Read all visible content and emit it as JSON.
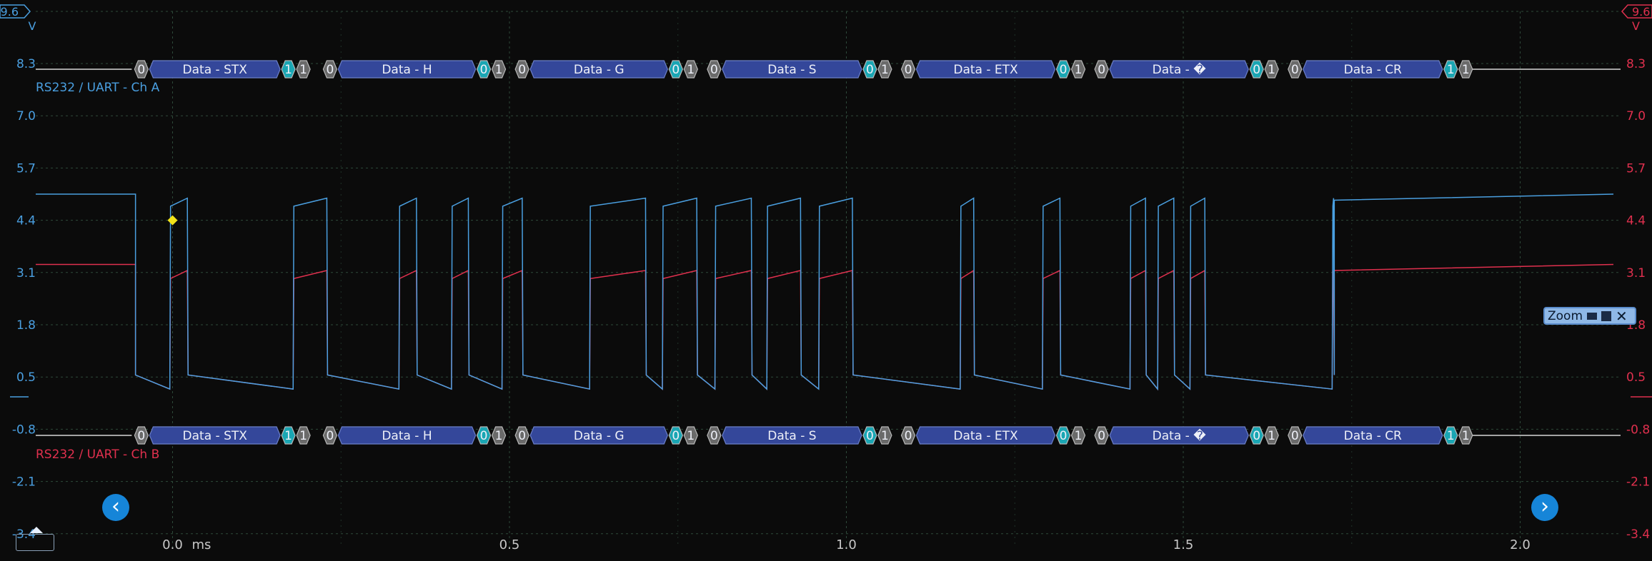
{
  "colors": {
    "background": "#0b0b0b",
    "grid": "#2e4a3a",
    "channel_a": "#4a9fe0",
    "channel_b": "#e0304e",
    "bus_fill": "#34479a",
    "bus_border": "#6b7fc8",
    "bit_zero": "#6a6a6a",
    "bit_one": "#1aa6b3",
    "marker": "#f2e31a",
    "nav_button": "#1685d8"
  },
  "left_axis": {
    "unit": "V",
    "top_value": "9.6",
    "ticks": [
      "8.3",
      "7.0",
      "5.7",
      "4.4",
      "3.1",
      "1.8",
      "0.5",
      "-0.8",
      "-2.1",
      "-3.4"
    ]
  },
  "right_axis": {
    "unit": "V",
    "top_value": "9.6",
    "ticks": [
      "8.3",
      "7.0",
      "5.7",
      "4.4",
      "3.1",
      "1.8",
      "0.5",
      "-0.8",
      "-2.1",
      "-3.4"
    ]
  },
  "time_axis": {
    "ticks": [
      {
        "label": "0.0",
        "value": 0.0
      },
      {
        "label": "0.5",
        "value": 0.5
      },
      {
        "label": "1.0",
        "value": 1.0
      },
      {
        "label": "1.5",
        "value": 1.5
      },
      {
        "label": "2.0",
        "value": 2.0
      }
    ],
    "unit": "ms"
  },
  "decoders": [
    {
      "label": "RS232 / UART - Ch A",
      "channel": "a"
    },
    {
      "label": "RS232 / UART - Ch B",
      "channel": "b"
    }
  ],
  "frames": [
    {
      "start_bit": "0",
      "data": "Data - STX",
      "parity": "1",
      "stop": "1",
      "t0": -0.05,
      "t1": 0.2
    },
    {
      "start_bit": "0",
      "data": "Data - H",
      "parity": "0",
      "stop": "1",
      "t0": 0.23,
      "t1": 0.49
    },
    {
      "start_bit": "0",
      "data": "Data - G",
      "parity": "0",
      "stop": "1",
      "t0": 0.515,
      "t1": 0.775
    },
    {
      "start_bit": "0",
      "data": "Data - S",
      "parity": "0",
      "stop": "1",
      "t0": 0.8,
      "t1": 1.063
    },
    {
      "start_bit": "0",
      "data": "Data - ETX",
      "parity": "0",
      "stop": "1",
      "t0": 1.088,
      "t1": 1.35
    },
    {
      "start_bit": "0",
      "data": "Data - �",
      "parity": "0",
      "stop": "1",
      "t0": 1.375,
      "t1": 1.637
    },
    {
      "start_bit": "0",
      "data": "Data - CR",
      "parity": "1",
      "stop": "1",
      "t0": 1.662,
      "t1": 1.925
    }
  ],
  "signal": {
    "high_a": 4.95,
    "low_a": 0.2,
    "high_b": 3.15,
    "low_b": 0.2,
    "idle_a": 5.05,
    "idle_b": 3.3,
    "edges": [
      -0.055,
      -0.003,
      0.023,
      0.18,
      0.23,
      0.337,
      0.363,
      0.415,
      0.44,
      0.49,
      0.52,
      0.62,
      0.703,
      0.728,
      0.779,
      0.806,
      0.86,
      0.883,
      0.933,
      0.96,
      1.01,
      1.17,
      1.19,
      1.292,
      1.318,
      1.422,
      1.445,
      1.463,
      1.487,
      1.511,
      1.533,
      1.722
    ]
  },
  "marker": {
    "t": 0.0,
    "v": 4.4
  },
  "zoom_control": {
    "label": "Zoom"
  },
  "nav": {
    "prev_icon": "chevron-left-icon",
    "next_icon": "chevron-right-icon"
  }
}
